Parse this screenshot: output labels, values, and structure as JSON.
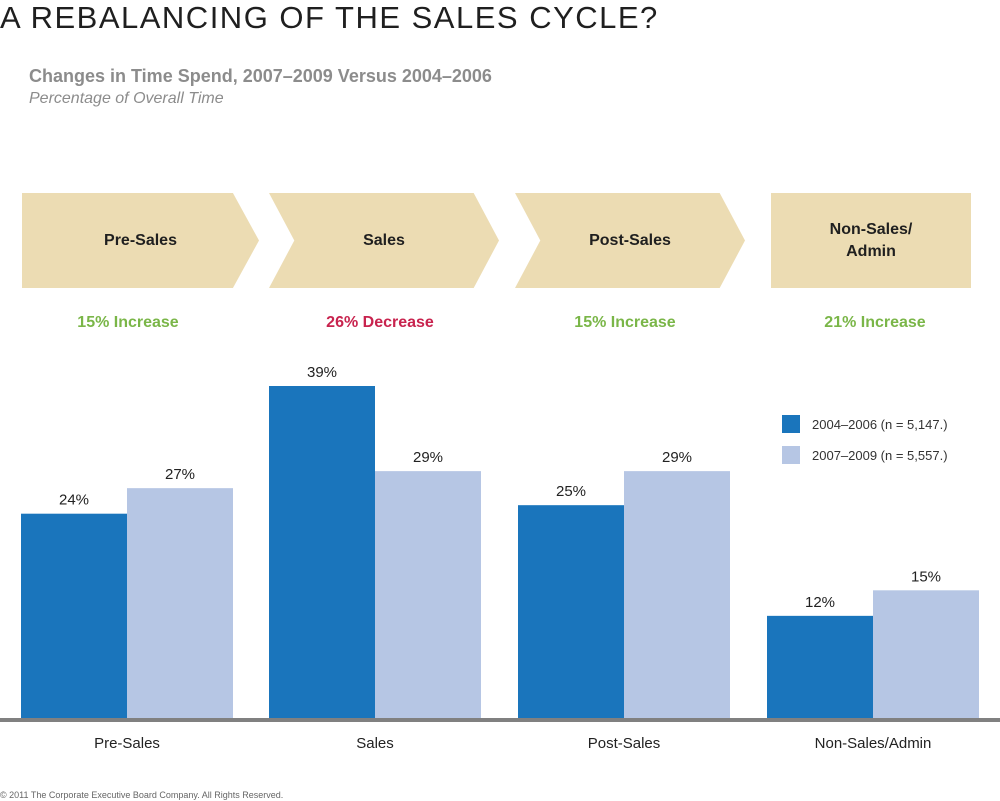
{
  "header": {
    "title": "A REBALANCING OF THE SALES CYCLE?",
    "subtitle": "Changes in Time Spend, 2007–2009 Versus 2004–2006",
    "subtitle2": "Percentage of Overall Time"
  },
  "stages": [
    {
      "label": "Pre-Sales",
      "change": "15% Increase",
      "direction": "increase"
    },
    {
      "label": "Sales",
      "change": "26% Decrease",
      "direction": "decrease"
    },
    {
      "label": "Post-Sales",
      "change": "15% Increase",
      "direction": "increase"
    },
    {
      "label": "Non-Sales/ Admin",
      "change": "21% Increase",
      "direction": "increase"
    }
  ],
  "colors": {
    "series1": "#1a75bc",
    "series2": "#b6c6e4",
    "chevron": "#ecdcb3",
    "increase": "#7ab648",
    "decrease": "#c8234e",
    "baseline": "#808080"
  },
  "chart_data": {
    "type": "bar",
    "categories": [
      "Pre-Sales",
      "Sales",
      "Post-Sales",
      "Non-Sales/Admin"
    ],
    "series": [
      {
        "name": "2004–2006 (n = 5,147.)",
        "values": [
          24,
          39,
          25,
          12
        ]
      },
      {
        "name": "2007–2009 (n = 5,557.)",
        "values": [
          27,
          29,
          29,
          15
        ]
      }
    ],
    "data_labels": [
      [
        "24%",
        "39%",
        "25%",
        "12%"
      ],
      [
        "27%",
        "29%",
        "29%",
        "15%"
      ]
    ],
    "ylim": [
      0,
      42
    ],
    "legend": "right",
    "grid": false
  },
  "footer": "© 2011 The Corporate Executive Board Company.  All Rights Reserved."
}
